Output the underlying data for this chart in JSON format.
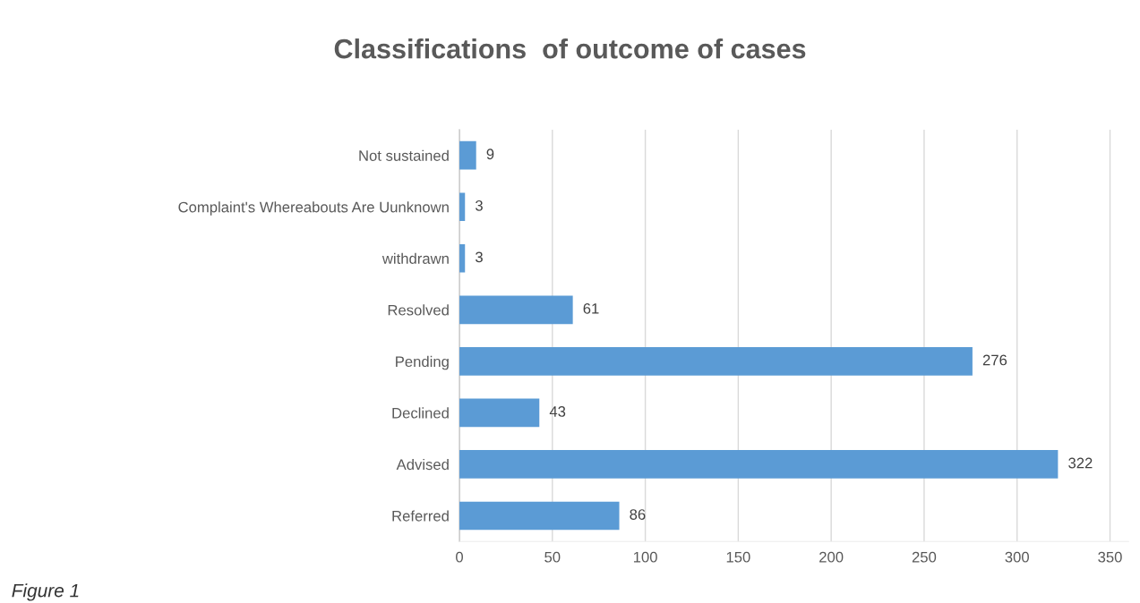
{
  "chart_data": {
    "type": "bar",
    "orientation": "horizontal",
    "title": "Classifications  of outcome of cases",
    "categories": [
      "Not sustained",
      "Complaint's Whereabouts Are Uunknown",
      "withdrawn",
      "Resolved",
      "Pending",
      "Declined",
      "Advised",
      "Referred"
    ],
    "values": [
      9,
      3,
      3,
      61,
      276,
      43,
      322,
      86
    ],
    "color": "#5b9bd5",
    "xlim": [
      0,
      360
    ],
    "xticks": [
      0,
      50,
      100,
      150,
      200,
      250,
      300,
      350
    ],
    "grid": "x",
    "data_labels": true,
    "legend": false,
    "annotations": [
      "Figure 1"
    ]
  }
}
